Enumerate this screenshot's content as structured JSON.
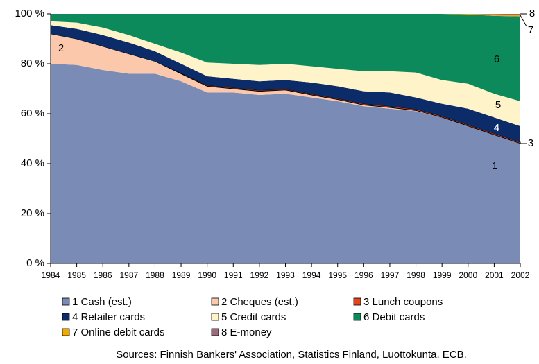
{
  "chart_data": {
    "type": "stacked-area",
    "categories": [
      "1984",
      "1985",
      "1986",
      "1987",
      "1988",
      "1989",
      "1990",
      "1991",
      "1992",
      "1993",
      "1994",
      "1995",
      "1996",
      "1997",
      "1998",
      "1999",
      "2000",
      "2001",
      "2002"
    ],
    "series": [
      {
        "name": "1 Cash (est.)",
        "color": "#7a8bb6",
        "values": [
          80,
          79.5,
          77.5,
          76,
          76,
          73,
          68.5,
          68.5,
          67.5,
          68,
          66.5,
          65,
          63,
          62,
          61,
          58.5,
          55,
          51.5,
          48
        ]
      },
      {
        "name": "2 Cheques (est.)",
        "color": "#fbc8ab",
        "values": [
          12,
          10.5,
          9.5,
          8,
          5,
          3,
          2.5,
          1.5,
          1.5,
          1.5,
          1,
          0.7,
          0.5,
          0.5,
          0.3,
          0.1,
          0.1,
          0.1,
          0.1
        ]
      },
      {
        "name": "3 Lunch coupons",
        "color": "#e2471c",
        "values": [
          0,
          0,
          0,
          0,
          0,
          0.3,
          0.4,
          0.4,
          0.4,
          0.4,
          0.4,
          0.4,
          0.5,
          0.5,
          0.5,
          0.5,
          0.5,
          0.5,
          0.5
        ]
      },
      {
        "name": "4 Retailer cards",
        "color": "#0b2c69",
        "values": [
          3.5,
          4,
          4.5,
          4.5,
          4,
          3.7,
          3.6,
          3.6,
          3.6,
          3.6,
          4.6,
          4.9,
          5,
          5.5,
          4.7,
          4.9,
          6.4,
          6.4,
          6.4
        ]
      },
      {
        "name": "5 Credit cards",
        "color": "#fff3c9",
        "values": [
          1.5,
          2.5,
          3,
          3,
          3,
          4.5,
          5.5,
          6,
          6.5,
          6.5,
          6.5,
          7,
          8,
          8.5,
          10,
          9.5,
          10,
          9.5,
          10
        ]
      },
      {
        "name": "6 Debit cards",
        "color": "#0c8a5b",
        "values": [
          3,
          3.5,
          5.5,
          8.5,
          12,
          15.5,
          19.5,
          20,
          20.5,
          20,
          21,
          22,
          23,
          23,
          23.5,
          26.5,
          27.8,
          31.2,
          34
        ]
      },
      {
        "name": "7 Online debit cards",
        "color": "#f2a900",
        "values": [
          0,
          0,
          0,
          0,
          0,
          0,
          0,
          0,
          0,
          0,
          0,
          0,
          0,
          0,
          0,
          0,
          0.2,
          0.6,
          0.6
        ]
      },
      {
        "name": "8 E-money",
        "color": "#9b6b7d",
        "values": [
          0,
          0,
          0,
          0,
          0,
          0,
          0,
          0,
          0,
          0,
          0,
          0,
          0,
          0,
          0,
          0,
          0,
          0.2,
          0.4
        ]
      }
    ],
    "ylim": [
      0,
      100
    ],
    "yticks": [
      {
        "value": 0,
        "label": "0 %"
      },
      {
        "value": 20,
        "label": "20 %"
      },
      {
        "value": 40,
        "label": "40 %"
      },
      {
        "value": 60,
        "label": "60 %"
      },
      {
        "value": 80,
        "label": "80 %"
      },
      {
        "value": 100,
        "label": "100 %"
      }
    ],
    "annotations": [
      "1",
      "2",
      "3",
      "4",
      "5",
      "6",
      "7",
      "8"
    ],
    "source": "Sources: Finnish Bankers' Association, Statistics Finland, Luottokunta, ECB."
  }
}
